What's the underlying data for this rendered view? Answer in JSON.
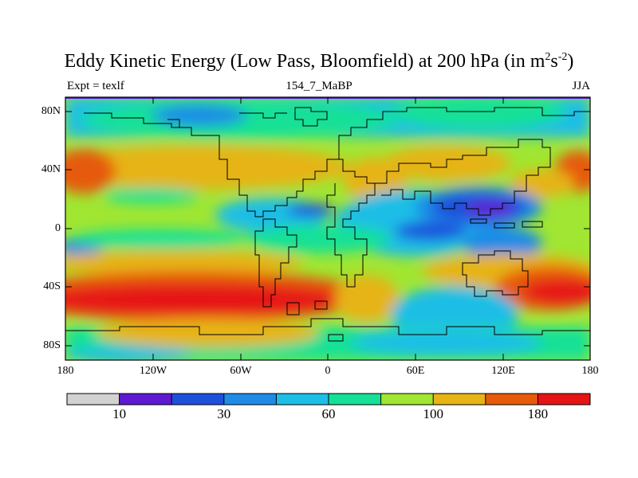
{
  "title": {
    "main": "Eddy Kinetic Energy (Low Pass, Bloomfield) at 200 hPa (in m",
    "sup1": "2",
    "mid": "s",
    "sup2": "-2",
    "close": ")"
  },
  "subtitle": {
    "left": "Expt = texlf",
    "center": "154_7_MaBP",
    "right": "JJA"
  },
  "axes": {
    "lat_labels": [
      "80N",
      "40N",
      "0",
      "40S",
      "80S"
    ],
    "lon_labels": [
      "180",
      "120W",
      "60W",
      "0",
      "60E",
      "120E",
      "180"
    ]
  },
  "colorbar": {
    "colors": [
      "#d2d2d2",
      "#5f19d2",
      "#1e50dc",
      "#1e8ce6",
      "#1ebee6",
      "#14e196",
      "#a0e632",
      "#e6b414",
      "#e65a0a",
      "#e61414"
    ],
    "labels": [
      "10",
      "30",
      "60",
      "100",
      "180"
    ]
  },
  "colors": {
    "field_base": "#a0e632",
    "coast": "#000000",
    "top_band": "#5f19d2"
  }
}
